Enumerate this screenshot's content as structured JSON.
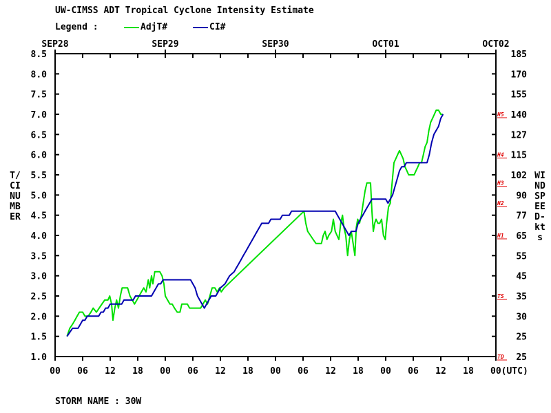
{
  "title": "UW-CIMSS ADT Tropical Cyclone Intensity Estimate",
  "legend": {
    "label": "Legend :",
    "items": [
      {
        "name": "AdjT#",
        "color": "#00e000"
      },
      {
        "name": "CI#",
        "color": "#0000b0"
      }
    ]
  },
  "footer": "STORM NAME : 30W",
  "y_left_label": "T/CI NUMBER",
  "y_right_label": "WIND SPEED-kts",
  "chart_data": {
    "type": "line",
    "title": "UW-CIMSS ADT Tropical Cyclone Intensity Estimate",
    "xlabel": "(UTC)",
    "ylabel": "T/CI NUMBER",
    "ylabel_right": "WIND SPEED-kts",
    "x_unit": "hours from SEP28 00 UTC",
    "xlim": [
      0,
      96
    ],
    "ylim": [
      1.0,
      8.5
    ],
    "grid": false,
    "legend_position": "top-left",
    "date_labels": [
      {
        "label": "SEP28",
        "hour": 0
      },
      {
        "label": "SEP29",
        "hour": 24
      },
      {
        "label": "SEP30",
        "hour": 48
      },
      {
        "label": "OCT01",
        "hour": 72
      },
      {
        "label": "OCT02",
        "hour": 96
      }
    ],
    "x_ticks": [
      {
        "label": "00",
        "hour": 0
      },
      {
        "label": "06",
        "hour": 6
      },
      {
        "label": "12",
        "hour": 12
      },
      {
        "label": "18",
        "hour": 18
      },
      {
        "label": "00",
        "hour": 24
      },
      {
        "label": "06",
        "hour": 30
      },
      {
        "label": "12",
        "hour": 36
      },
      {
        "label": "18",
        "hour": 42
      },
      {
        "label": "00",
        "hour": 48
      },
      {
        "label": "06",
        "hour": 54
      },
      {
        "label": "12",
        "hour": 60
      },
      {
        "label": "18",
        "hour": 66
      },
      {
        "label": "00",
        "hour": 72
      },
      {
        "label": "06",
        "hour": 78
      },
      {
        "label": "12",
        "hour": 84
      },
      {
        "label": "18",
        "hour": 90
      },
      {
        "label": "00(UTC)",
        "hour": 96
      }
    ],
    "y_ticks_left": [
      "1.0",
      "1.5",
      "2.0",
      "2.5",
      "3.0",
      "3.5",
      "4.0",
      "4.5",
      "5.0",
      "5.5",
      "6.0",
      "6.5",
      "7.0",
      "7.5",
      "8.0",
      "8.5"
    ],
    "y_ticks_right": [
      {
        "label": "25",
        "t": 1.0
      },
      {
        "label": "25",
        "t": 1.5
      },
      {
        "label": "30",
        "t": 2.0
      },
      {
        "label": "35",
        "t": 2.5
      },
      {
        "label": "45",
        "t": 3.0
      },
      {
        "label": "55",
        "t": 3.5
      },
      {
        "label": "65",
        "t": 4.0
      },
      {
        "label": "77",
        "t": 4.5
      },
      {
        "label": "90",
        "t": 5.0
      },
      {
        "label": "102",
        "t": 5.5
      },
      {
        "label": "115",
        "t": 6.0
      },
      {
        "label": "127",
        "t": 6.5
      },
      {
        "label": "140",
        "t": 7.0
      },
      {
        "label": "155",
        "t": 7.5
      },
      {
        "label": "170",
        "t": 8.0
      },
      {
        "label": "185",
        "t": 8.5
      }
    ],
    "category_markers": [
      {
        "label": "TD",
        "t": 1.0
      },
      {
        "label": "TS",
        "t": 2.5
      },
      {
        "label": "H1",
        "t": 4.0
      },
      {
        "label": "H2",
        "t": 4.8
      },
      {
        "label": "H3",
        "t": 5.3
      },
      {
        "label": "H4",
        "t": 6.0
      },
      {
        "label": "H5",
        "t": 7.0
      }
    ],
    "series": [
      {
        "name": "AdjT#",
        "color": "#00e000",
        "points": [
          [
            2.6,
            1.5
          ],
          [
            3.2,
            1.7
          ],
          [
            3.8,
            1.8
          ],
          [
            4.3,
            1.9
          ],
          [
            4.8,
            2.0
          ],
          [
            5.3,
            2.1
          ],
          [
            6.0,
            2.1
          ],
          [
            6.5,
            2.0
          ],
          [
            7.2,
            2.0
          ],
          [
            7.8,
            2.1
          ],
          [
            8.3,
            2.2
          ],
          [
            9.0,
            2.1
          ],
          [
            9.6,
            2.2
          ],
          [
            10.2,
            2.3
          ],
          [
            10.8,
            2.4
          ],
          [
            11.5,
            2.4
          ],
          [
            11.9,
            2.5
          ],
          [
            12.3,
            2.3
          ],
          [
            12.6,
            1.9
          ],
          [
            13.0,
            2.2
          ],
          [
            13.4,
            2.4
          ],
          [
            13.8,
            2.2
          ],
          [
            14.2,
            2.5
          ],
          [
            14.6,
            2.7
          ],
          [
            15.2,
            2.7
          ],
          [
            15.8,
            2.7
          ],
          [
            16.3,
            2.5
          ],
          [
            16.8,
            2.4
          ],
          [
            17.3,
            2.3
          ],
          [
            17.8,
            2.4
          ],
          [
            18.3,
            2.5
          ],
          [
            18.8,
            2.6
          ],
          [
            19.3,
            2.7
          ],
          [
            19.8,
            2.6
          ],
          [
            20.3,
            2.9
          ],
          [
            20.6,
            2.7
          ],
          [
            21.0,
            3.0
          ],
          [
            21.3,
            2.8
          ],
          [
            21.7,
            3.1
          ],
          [
            22.2,
            3.1
          ],
          [
            22.8,
            3.1
          ],
          [
            23.3,
            3.0
          ],
          [
            23.7,
            2.8
          ],
          [
            24.0,
            2.5
          ],
          [
            24.5,
            2.4
          ],
          [
            25.0,
            2.3
          ],
          [
            25.5,
            2.3
          ],
          [
            26.0,
            2.2
          ],
          [
            26.6,
            2.1
          ],
          [
            27.2,
            2.1
          ],
          [
            27.6,
            2.3
          ],
          [
            28.2,
            2.3
          ],
          [
            28.8,
            2.3
          ],
          [
            29.3,
            2.2
          ],
          [
            30.0,
            2.2
          ],
          [
            30.6,
            2.2
          ],
          [
            31.2,
            2.2
          ],
          [
            31.7,
            2.2
          ],
          [
            32.2,
            2.3
          ],
          [
            32.7,
            2.4
          ],
          [
            33.2,
            2.3
          ],
          [
            33.7,
            2.5
          ],
          [
            34.2,
            2.7
          ],
          [
            34.8,
            2.7
          ],
          [
            35.3,
            2.6
          ],
          [
            35.8,
            2.7
          ],
          [
            36.2,
            2.6
          ],
          [
            36.8,
            2.7
          ],
          [
            54.2,
            4.6
          ],
          [
            54.6,
            4.3
          ],
          [
            55.0,
            4.1
          ],
          [
            55.6,
            4.0
          ],
          [
            56.2,
            3.9
          ],
          [
            56.8,
            3.8
          ],
          [
            57.5,
            3.8
          ],
          [
            58.0,
            3.8
          ],
          [
            58.4,
            4.0
          ],
          [
            58.8,
            4.1
          ],
          [
            59.2,
            3.9
          ],
          [
            59.6,
            4.0
          ],
          [
            60.2,
            4.1
          ],
          [
            60.6,
            4.4
          ],
          [
            61.0,
            4.1
          ],
          [
            61.4,
            4.0
          ],
          [
            61.8,
            3.9
          ],
          [
            62.2,
            4.3
          ],
          [
            62.6,
            4.5
          ],
          [
            62.9,
            4.2
          ],
          [
            63.3,
            4.0
          ],
          [
            63.7,
            3.5
          ],
          [
            64.1,
            3.9
          ],
          [
            64.5,
            4.1
          ],
          [
            64.9,
            3.8
          ],
          [
            65.3,
            3.5
          ],
          [
            65.6,
            4.2
          ],
          [
            65.9,
            4.4
          ],
          [
            66.3,
            4.3
          ],
          [
            66.7,
            4.5
          ],
          [
            67.1,
            4.8
          ],
          [
            67.5,
            5.1
          ],
          [
            67.9,
            5.3
          ],
          [
            68.3,
            5.3
          ],
          [
            68.7,
            5.3
          ],
          [
            69.0,
            4.6
          ],
          [
            69.3,
            4.1
          ],
          [
            69.6,
            4.3
          ],
          [
            69.9,
            4.4
          ],
          [
            70.3,
            4.3
          ],
          [
            70.7,
            4.3
          ],
          [
            71.1,
            4.4
          ],
          [
            71.5,
            4.0
          ],
          [
            71.9,
            3.9
          ],
          [
            72.2,
            4.3
          ],
          [
            72.6,
            4.7
          ],
          [
            73.0,
            4.8
          ],
          [
            73.4,
            5.3
          ],
          [
            73.8,
            5.8
          ],
          [
            74.2,
            5.9
          ],
          [
            74.6,
            6.0
          ],
          [
            75.0,
            6.1
          ],
          [
            75.4,
            6.0
          ],
          [
            75.8,
            5.9
          ],
          [
            76.2,
            5.7
          ],
          [
            76.6,
            5.6
          ],
          [
            77.0,
            5.5
          ],
          [
            77.4,
            5.5
          ],
          [
            77.8,
            5.5
          ],
          [
            78.2,
            5.5
          ],
          [
            78.6,
            5.6
          ],
          [
            79.0,
            5.7
          ],
          [
            79.4,
            5.8
          ],
          [
            79.8,
            5.8
          ],
          [
            80.2,
            6.0
          ],
          [
            80.6,
            6.2
          ],
          [
            81.0,
            6.3
          ],
          [
            81.4,
            6.6
          ],
          [
            81.8,
            6.8
          ],
          [
            82.2,
            6.9
          ],
          [
            82.6,
            7.0
          ],
          [
            83.0,
            7.1
          ],
          [
            83.5,
            7.1
          ],
          [
            84.0,
            7.0
          ],
          [
            84.4,
            7.0
          ]
        ]
      },
      {
        "name": "CI#",
        "color": "#0000b0",
        "points": [
          [
            2.6,
            1.5
          ],
          [
            3.2,
            1.6
          ],
          [
            3.8,
            1.7
          ],
          [
            4.5,
            1.7
          ],
          [
            5.0,
            1.7
          ],
          [
            5.5,
            1.8
          ],
          [
            6.0,
            1.9
          ],
          [
            6.5,
            1.9
          ],
          [
            7.0,
            2.0
          ],
          [
            9.5,
            2.0
          ],
          [
            10.0,
            2.1
          ],
          [
            10.5,
            2.1
          ],
          [
            11.0,
            2.2
          ],
          [
            11.5,
            2.2
          ],
          [
            12.0,
            2.3
          ],
          [
            14.5,
            2.3
          ],
          [
            15.0,
            2.4
          ],
          [
            17.0,
            2.4
          ],
          [
            17.5,
            2.5
          ],
          [
            21.0,
            2.5
          ],
          [
            21.5,
            2.6
          ],
          [
            22.0,
            2.7
          ],
          [
            22.5,
            2.8
          ],
          [
            23.0,
            2.8
          ],
          [
            23.5,
            2.9
          ],
          [
            29.5,
            2.9
          ],
          [
            30.0,
            2.8
          ],
          [
            30.5,
            2.7
          ],
          [
            31.0,
            2.5
          ],
          [
            31.5,
            2.4
          ],
          [
            32.0,
            2.3
          ],
          [
            32.5,
            2.2
          ],
          [
            33.0,
            2.3
          ],
          [
            33.5,
            2.4
          ],
          [
            34.0,
            2.5
          ],
          [
            35.0,
            2.5
          ],
          [
            35.5,
            2.6
          ],
          [
            36.0,
            2.7
          ],
          [
            37.0,
            2.8
          ],
          [
            37.5,
            2.9
          ],
          [
            38.0,
            3.0
          ],
          [
            39.0,
            3.1
          ],
          [
            39.5,
            3.2
          ],
          [
            40.0,
            3.3
          ],
          [
            40.5,
            3.4
          ],
          [
            41.0,
            3.5
          ],
          [
            41.5,
            3.6
          ],
          [
            42.0,
            3.7
          ],
          [
            42.5,
            3.8
          ],
          [
            43.0,
            3.9
          ],
          [
            43.5,
            4.0
          ],
          [
            44.0,
            4.1
          ],
          [
            44.5,
            4.2
          ],
          [
            45.0,
            4.3
          ],
          [
            46.5,
            4.3
          ],
          [
            47.0,
            4.4
          ],
          [
            49.0,
            4.4
          ],
          [
            49.5,
            4.5
          ],
          [
            51.0,
            4.5
          ],
          [
            51.5,
            4.6
          ],
          [
            61.0,
            4.6
          ],
          [
            61.5,
            4.5
          ],
          [
            62.0,
            4.4
          ],
          [
            62.5,
            4.3
          ],
          [
            63.0,
            4.2
          ],
          [
            63.5,
            4.1
          ],
          [
            64.0,
            4.0
          ],
          [
            64.5,
            4.1
          ],
          [
            65.5,
            4.1
          ],
          [
            66.0,
            4.3
          ],
          [
            66.5,
            4.4
          ],
          [
            67.0,
            4.5
          ],
          [
            67.5,
            4.6
          ],
          [
            68.0,
            4.7
          ],
          [
            68.5,
            4.8
          ],
          [
            69.0,
            4.9
          ],
          [
            72.0,
            4.9
          ],
          [
            72.5,
            4.8
          ],
          [
            73.0,
            4.9
          ],
          [
            73.5,
            5.0
          ],
          [
            74.0,
            5.2
          ],
          [
            74.5,
            5.4
          ],
          [
            75.0,
            5.6
          ],
          [
            75.5,
            5.7
          ],
          [
            76.0,
            5.7
          ],
          [
            76.5,
            5.8
          ],
          [
            81.0,
            5.8
          ],
          [
            81.5,
            6.0
          ],
          [
            82.0,
            6.3
          ],
          [
            82.5,
            6.5
          ],
          [
            83.0,
            6.6
          ],
          [
            83.5,
            6.7
          ],
          [
            84.0,
            6.9
          ],
          [
            84.5,
            7.0
          ]
        ]
      }
    ]
  }
}
